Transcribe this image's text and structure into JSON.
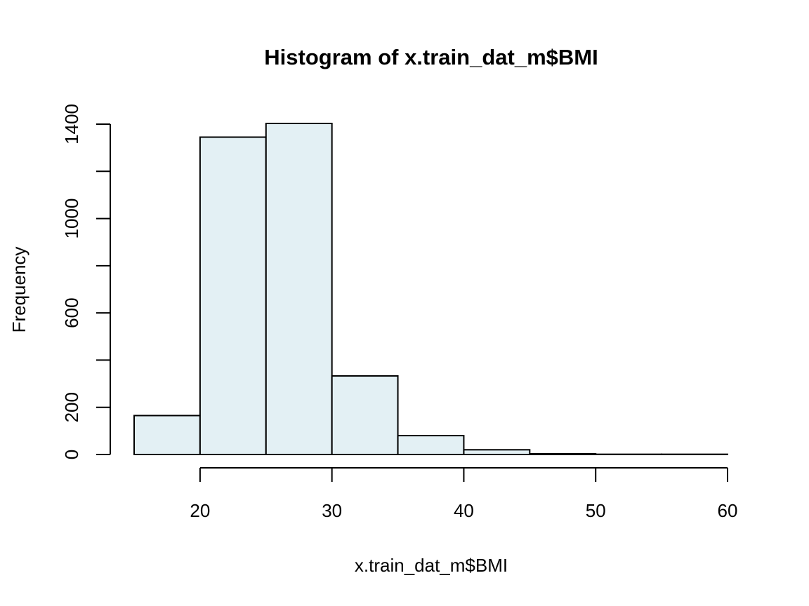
{
  "chart_data": {
    "type": "bar",
    "title": "Histogram of x.train_dat_m$BMI",
    "xlabel": "x.train_dat_m$BMI",
    "ylabel": "Frequency",
    "bins": [
      {
        "start": 15,
        "end": 20,
        "count": 165
      },
      {
        "start": 20,
        "end": 25,
        "count": 1345
      },
      {
        "start": 25,
        "end": 30,
        "count": 1403
      },
      {
        "start": 30,
        "end": 35,
        "count": 333
      },
      {
        "start": 35,
        "end": 40,
        "count": 80
      },
      {
        "start": 40,
        "end": 45,
        "count": 20
      },
      {
        "start": 45,
        "end": 50,
        "count": 3
      },
      {
        "start": 50,
        "end": 55,
        "count": 1
      },
      {
        "start": 55,
        "end": 60,
        "count": 1
      }
    ],
    "xlim": [
      15,
      60
    ],
    "ylim": [
      0,
      1403
    ],
    "x_ticks": [
      20,
      30,
      40,
      50,
      60
    ],
    "x_tick_labels": [
      "20",
      "30",
      "40",
      "50",
      "60"
    ],
    "y_ticks": [
      0,
      200,
      400,
      600,
      800,
      1000,
      1200,
      1400
    ],
    "y_tick_labels": [
      "0",
      "200",
      "",
      "600",
      "",
      "1000",
      "",
      "1400"
    ],
    "bar_fill": "#e3f0f4",
    "grid": false,
    "legend": "none"
  }
}
